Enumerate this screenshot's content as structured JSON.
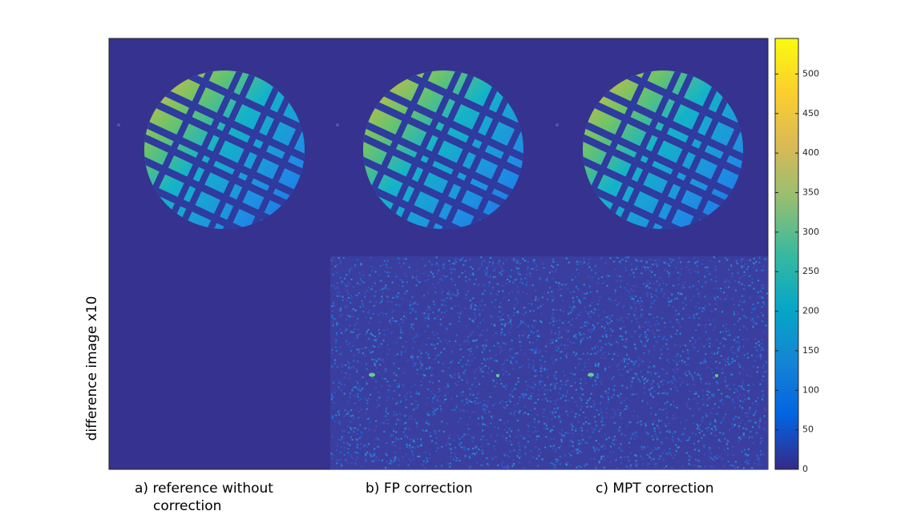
{
  "chart_data": {
    "type": "image",
    "ylabel": "difference image x10",
    "panel_labels": [
      [
        "a) reference without",
        "correction"
      ],
      [
        "b) FP correction"
      ],
      [
        "c) MPT correction"
      ]
    ],
    "colormap": "parula",
    "clim": [
      0,
      545
    ],
    "cticks": [
      0,
      50,
      100,
      150,
      200,
      250,
      300,
      350,
      400,
      450,
      500
    ]
  }
}
